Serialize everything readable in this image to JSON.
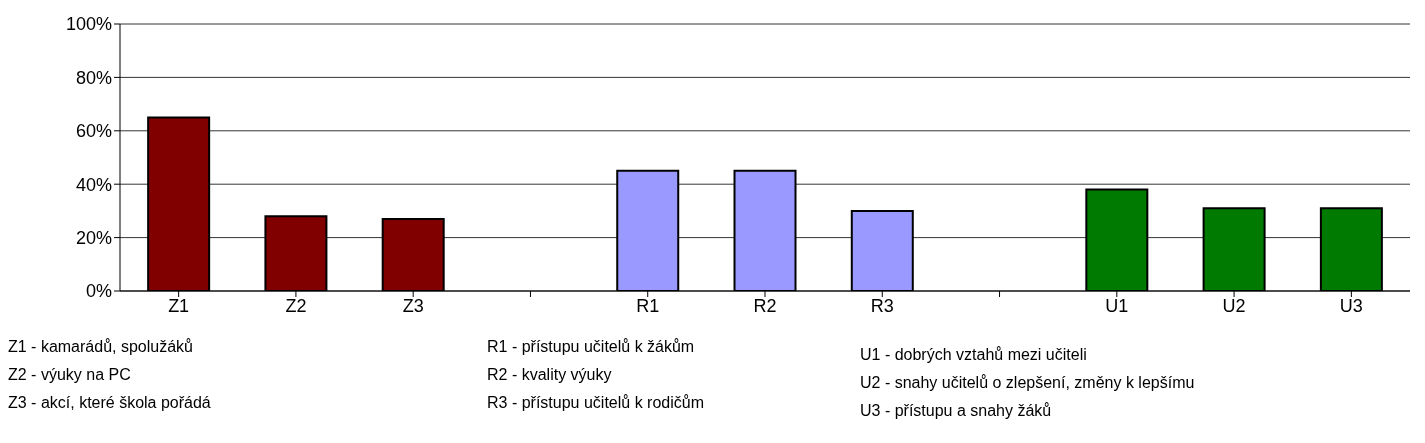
{
  "chart_data": {
    "type": "bar",
    "categories": [
      "Z1",
      "Z2",
      "Z3",
      null,
      "R1",
      "R2",
      "R3",
      null,
      "U1",
      "U2",
      "U3"
    ],
    "values": [
      65,
      28,
      27,
      null,
      45,
      45,
      30,
      null,
      38,
      31,
      31
    ],
    "colors": [
      "#800000",
      "#800000",
      "#800000",
      null,
      "#9999ff",
      "#9999ff",
      "#9999ff",
      null,
      "#007a00",
      "#007a00",
      "#007a00"
    ],
    "ylim": [
      0,
      100
    ],
    "yticks": [
      {
        "value": 0,
        "label": "0%"
      },
      {
        "value": 20,
        "label": "20%"
      },
      {
        "value": 40,
        "label": "40%"
      },
      {
        "value": 60,
        "label": "60%"
      },
      {
        "value": 80,
        "label": "80%"
      },
      {
        "value": 100,
        "label": "100%"
      }
    ],
    "grid": "y",
    "annotations": [
      "Z1 - kamarádů, spolužáků",
      "Z2 - výuky na PC",
      "Z3 - akcí, které škola pořádá",
      "R1 - přístupu učitelů k žákům",
      "R2 - kvality výuky",
      "R3 - přístupu učitelů k rodičům",
      "U1 - dobrých vztahů mezi učiteli",
      "U2 - snahy učitelů o zlepšení, změny k lepšímu",
      "U3 - přístupu a snahy žáků"
    ]
  }
}
